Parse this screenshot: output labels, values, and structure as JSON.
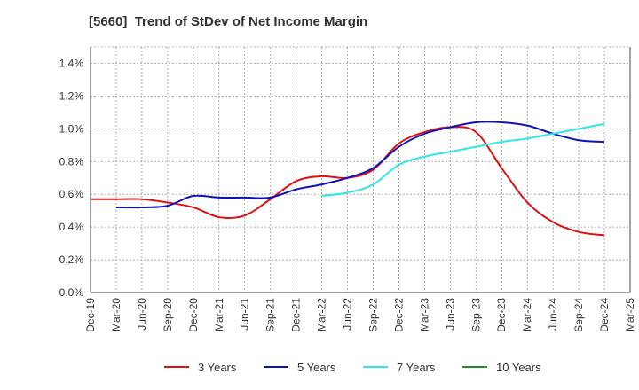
{
  "chart_data": {
    "type": "line",
    "title": "[5660]  Trend of StDev of Net Income Margin",
    "xlabel": "",
    "ylabel": "",
    "ylim": [
      0,
      1.5
    ],
    "y_ticks": [
      "0.0%",
      "0.2%",
      "0.4%",
      "0.6%",
      "0.8%",
      "1.0%",
      "1.2%",
      "1.4%"
    ],
    "y_tick_values": [
      0,
      0.2,
      0.4,
      0.6,
      0.8,
      1.0,
      1.2,
      1.4
    ],
    "x_ticks": [
      "Dec-19",
      "Mar-20",
      "Jun-20",
      "Sep-20",
      "Dec-20",
      "Mar-21",
      "Jun-21",
      "Sep-21",
      "Dec-21",
      "Mar-22",
      "Jun-22",
      "Sep-22",
      "Dec-22",
      "Mar-23",
      "Jun-23",
      "Sep-23",
      "Dec-23",
      "Mar-24",
      "Jun-24",
      "Sep-24",
      "Dec-24",
      "Mar-25"
    ],
    "grid": true,
    "legend_position": "bottom",
    "series": [
      {
        "name": "3 Years",
        "color": "#dd1111",
        "values": [
          0.57,
          0.57,
          0.57,
          0.55,
          0.52,
          0.46,
          0.47,
          0.57,
          0.68,
          0.71,
          0.7,
          0.75,
          0.91,
          0.98,
          1.01,
          0.98,
          0.76,
          0.55,
          0.43,
          0.37,
          0.35,
          null
        ]
      },
      {
        "name": "5 Years",
        "color": "#1111bb",
        "values": [
          null,
          0.52,
          0.52,
          0.53,
          0.59,
          0.58,
          0.58,
          0.58,
          0.63,
          0.66,
          0.7,
          0.76,
          0.89,
          0.97,
          1.01,
          1.04,
          1.04,
          1.02,
          0.97,
          0.93,
          0.92,
          null
        ]
      },
      {
        "name": "7 Years",
        "color": "#33e6e6",
        "values": [
          null,
          null,
          null,
          null,
          null,
          null,
          null,
          null,
          null,
          0.59,
          0.61,
          0.66,
          0.78,
          0.83,
          0.86,
          0.89,
          0.92,
          0.94,
          0.97,
          1.0,
          1.03,
          null
        ]
      },
      {
        "name": "10 Years",
        "color": "#228822",
        "values": [
          null,
          null,
          null,
          null,
          null,
          null,
          null,
          null,
          null,
          null,
          null,
          null,
          null,
          null,
          null,
          null,
          null,
          null,
          null,
          null,
          null,
          null
        ]
      }
    ]
  }
}
